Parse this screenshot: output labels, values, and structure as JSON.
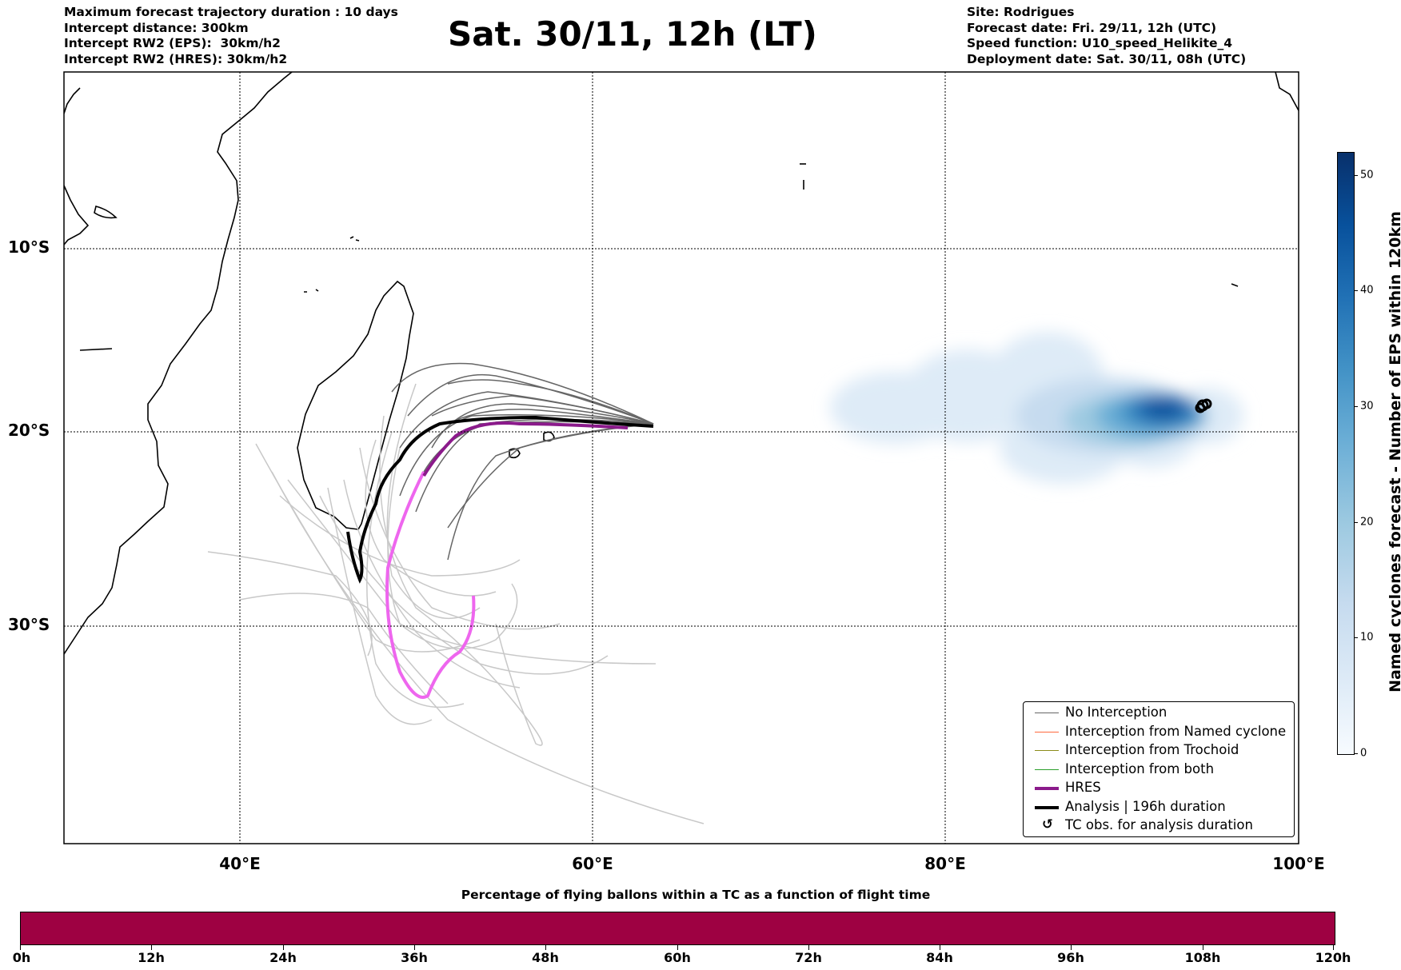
{
  "header_left": [
    "Maximum forecast trajectory duration : 10 days",
    "Intercept distance: 300km",
    "Intercept RW2 (EPS):  30km/h2",
    "Intercept RW2 (HRES): 30km/h2"
  ],
  "title": "Sat. 30/11, 12h (LT)",
  "header_right": [
    "Site: Rodrigues",
    "Forecast date: Fri. 29/11, 12h (UTC)",
    "Speed function: U10_speed_Helikite_4",
    "Deployment date: Sat. 30/11, 08h (UTC)"
  ],
  "map": {
    "lon_range": [
      30,
      100
    ],
    "lat_range": [
      -43,
      0
    ],
    "lat_labels": [
      "10°S",
      "20°S",
      "30°S"
    ],
    "lat_values": [
      -10,
      -20,
      -30
    ],
    "lon_labels": [
      "40°E",
      "60°E",
      "80°E",
      "100°E"
    ],
    "lon_values": [
      40,
      60,
      80,
      100
    ],
    "grid": "dotted",
    "colors": {
      "no_interception": "#666666",
      "eps_far": "#c8c8c8",
      "hres": "#8b1a8b",
      "hres_light": "#ee66ee",
      "analysis": "#000000",
      "named_cyclone": "#ff6a3d",
      "trochoid": "#8b8b1a",
      "both": "#2ca02c"
    }
  },
  "legend": {
    "items": [
      {
        "label": "No Interception",
        "color": "#666666",
        "width": 1.5
      },
      {
        "label": "Interception from Named cyclone",
        "color": "#ff6a3d",
        "width": 1.5
      },
      {
        "label": "Interception from Trochoid",
        "color": "#8b8b1a",
        "width": 1.5
      },
      {
        "label": "Interception from both",
        "color": "#2ca02c",
        "width": 1.5
      },
      {
        "label": "HRES",
        "color": "#8b1a8b",
        "width": 4
      },
      {
        "label": "Analysis | 196h duration",
        "color": "#000000",
        "width": 4
      },
      {
        "label": "TC obs. for analysis duration",
        "symbol": "↺"
      }
    ]
  },
  "colorbar": {
    "title": "Named cyclones forecast - Number of EPS within 120km",
    "ticks": [
      "0",
      "10",
      "20",
      "30",
      "40",
      "50"
    ],
    "tick_values": [
      0,
      10,
      20,
      30,
      40,
      50
    ],
    "max": 52,
    "colormap": "Blues"
  },
  "time_bar": {
    "title": "Percentage of flying ballons within a TC as a function of flight time",
    "color": "#9e0142",
    "labels": [
      "0h",
      "12h",
      "24h",
      "36h",
      "48h",
      "60h",
      "72h",
      "84h",
      "96h",
      "108h",
      "120h"
    ]
  }
}
